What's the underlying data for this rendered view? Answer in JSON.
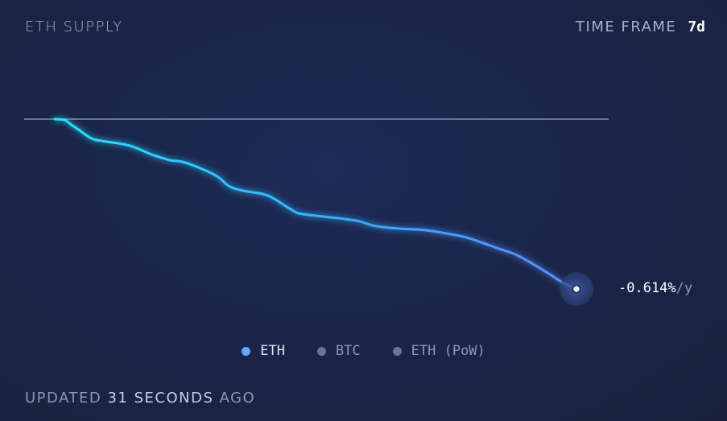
{
  "header": {
    "title": "ETH SUPPLY",
    "time_frame_label": "TIME FRAME",
    "time_frame_value": "7d"
  },
  "rate": {
    "value": "-0.614%",
    "unit": "/y"
  },
  "legend": [
    {
      "label": "ETH",
      "color": "#5fa8ff",
      "active": true
    },
    {
      "label": "BTC",
      "color": "#6c7591",
      "active": false
    },
    {
      "label": "ETH (PoW)",
      "color": "#6c7591",
      "active": false
    }
  ],
  "footer": {
    "prefix": "UPDATED",
    "amount": "31 SECONDS",
    "suffix": "AGO"
  },
  "colors": {
    "line_start": "#22e6ff",
    "line_end": "#5b8cff",
    "baseline": "#9aa3bd"
  },
  "chart_data": {
    "type": "line",
    "title": "ETH SUPPLY",
    "time_frame": "7d",
    "xlim": [
      0,
      7
    ],
    "ylim": [
      -0.614,
      0
    ],
    "baseline": 0,
    "series": [
      {
        "name": "ETH",
        "x": [
          0.0,
          0.12,
          0.2,
          0.3,
          0.45,
          0.6,
          0.9,
          1.2,
          1.4,
          1.6,
          1.95,
          2.1,
          2.2,
          2.35,
          2.6,
          2.9,
          3.0,
          3.2,
          3.5,
          3.7,
          3.9,
          4.2,
          4.5,
          4.8,
          5.0,
          5.2,
          5.4,
          5.6,
          5.8,
          6.0,
          6.2,
          6.35
        ],
        "values": [
          0.0,
          -0.003,
          -0.02,
          -0.04,
          -0.07,
          -0.08,
          -0.095,
          -0.13,
          -0.148,
          -0.158,
          -0.202,
          -0.238,
          -0.252,
          -0.262,
          -0.277,
          -0.331,
          -0.342,
          -0.35,
          -0.36,
          -0.369,
          -0.386,
          -0.396,
          -0.401,
          -0.415,
          -0.427,
          -0.446,
          -0.468,
          -0.488,
          -0.52,
          -0.556,
          -0.594,
          -0.614
        ]
      }
    ]
  }
}
